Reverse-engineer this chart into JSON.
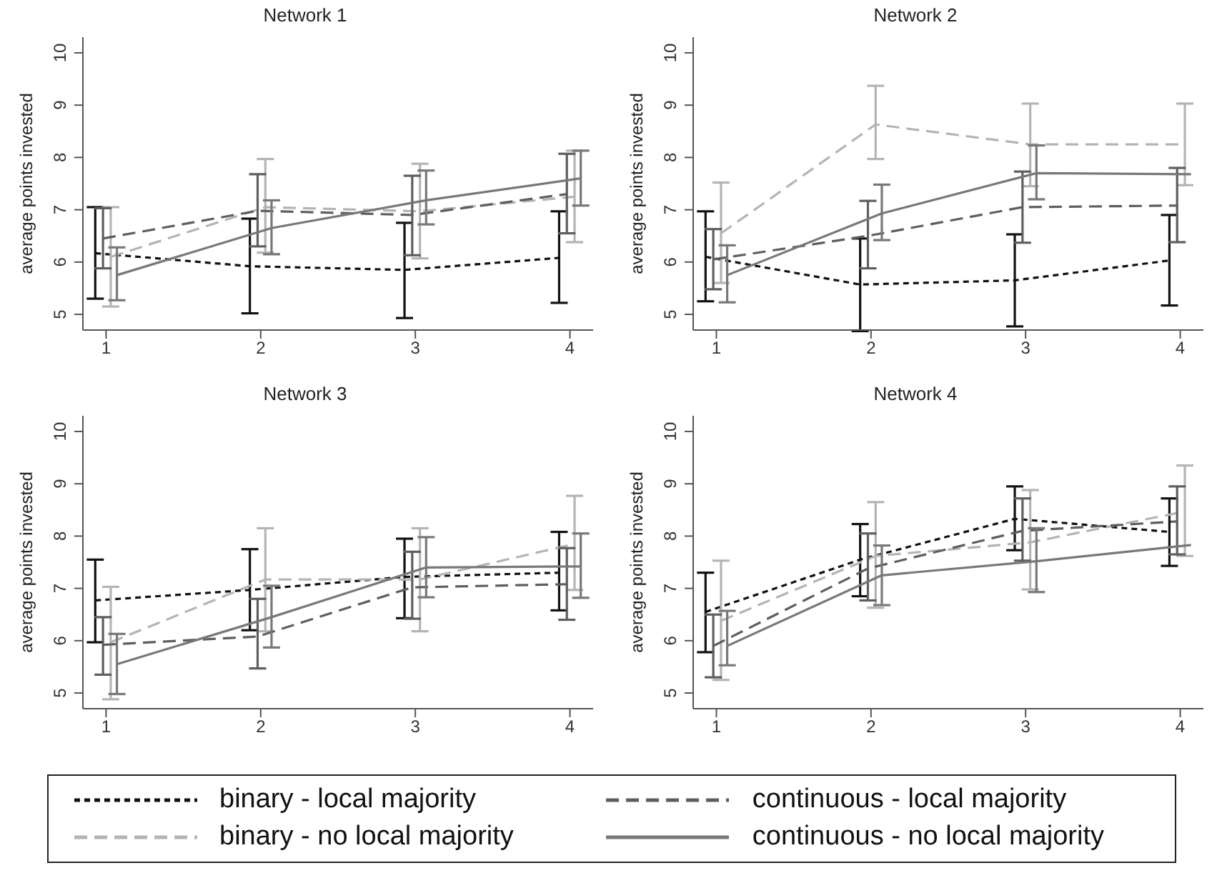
{
  "chart_data": [
    {
      "type": "line",
      "title": "Network 1",
      "ylabel": "average points invested",
      "xlim": [
        0.85,
        4.15
      ],
      "xticks": [
        1,
        2,
        3,
        4
      ],
      "ylim": [
        4.7,
        10.3
      ],
      "yticks": [
        5,
        6,
        7,
        8,
        9,
        10
      ],
      "legend": "bottom",
      "series": [
        {
          "name": "binary - local majority",
          "color": "#111111",
          "line_style": "dotted",
          "x": [
            0.93,
            1.93,
            2.93,
            3.93
          ],
          "values": [
            6.17,
            5.92,
            5.85,
            6.08
          ],
          "errors": [
            [
              5.3,
              7.05
            ],
            [
              5.02,
              6.83
            ],
            [
              4.93,
              6.75
            ],
            [
              5.22,
              6.97
            ]
          ]
        },
        {
          "name": "binary - no local majority",
          "color": "#b4b4b4",
          "line_style": "dashed",
          "x": [
            1.03,
            2.03,
            3.03,
            4.03
          ],
          "values": [
            6.1,
            7.05,
            6.97,
            7.25
          ],
          "errors": [
            [
              5.15,
              7.05
            ],
            [
              6.18,
              7.97
            ],
            [
              6.07,
              7.88
            ],
            [
              6.38,
              8.13
            ]
          ]
        },
        {
          "name": "continuous - local majority",
          "color": "#5e5e5e",
          "line_style": "dashed",
          "x": [
            0.98,
            1.98,
            2.98,
            3.98
          ],
          "values": [
            6.45,
            6.98,
            6.9,
            7.3
          ],
          "errors": [
            [
              5.88,
              7.03
            ],
            [
              6.3,
              7.68
            ],
            [
              6.13,
              7.65
            ],
            [
              6.55,
              8.07
            ]
          ]
        },
        {
          "name": "continuous - no local majority",
          "color": "#787878",
          "line_style": "solid",
          "x": [
            1.07,
            2.07,
            3.07,
            4.07
          ],
          "values": [
            5.75,
            6.65,
            7.18,
            7.6
          ],
          "errors": [
            [
              5.27,
              6.28
            ],
            [
              6.15,
              7.18
            ],
            [
              6.72,
              7.75
            ],
            [
              7.08,
              8.13
            ]
          ]
        }
      ]
    },
    {
      "type": "line",
      "title": "Network 2",
      "ylabel": "average points invested",
      "xlim": [
        0.85,
        4.15
      ],
      "xticks": [
        1,
        2,
        3,
        4
      ],
      "ylim": [
        4.7,
        10.3
      ],
      "yticks": [
        5,
        6,
        7,
        8,
        9,
        10
      ],
      "series": [
        {
          "color": "#111111",
          "line_style": "dotted",
          "x": [
            0.93,
            1.93,
            2.93,
            3.93
          ],
          "values": [
            6.1,
            5.57,
            5.65,
            6.03
          ],
          "errors": [
            [
              5.25,
              6.97
            ],
            [
              4.68,
              6.45
            ],
            [
              4.77,
              6.53
            ],
            [
              5.17,
              6.9
            ]
          ]
        },
        {
          "color": "#b4b4b4",
          "line_style": "dashed",
          "x": [
            1.03,
            2.03,
            3.03,
            4.03
          ],
          "values": [
            6.55,
            8.63,
            8.25,
            8.25
          ],
          "errors": [
            [
              5.6,
              7.52
            ],
            [
              7.97,
              9.37
            ],
            [
              7.45,
              9.03
            ],
            [
              7.47,
              9.03
            ]
          ]
        },
        {
          "color": "#5e5e5e",
          "line_style": "dashed",
          "x": [
            0.98,
            1.98,
            2.98,
            3.98
          ],
          "values": [
            6.05,
            6.5,
            7.05,
            7.08
          ],
          "errors": [
            [
              5.48,
              6.63
            ],
            [
              5.88,
              7.17
            ],
            [
              6.37,
              7.73
            ],
            [
              6.38,
              7.8
            ]
          ]
        },
        {
          "color": "#787878",
          "line_style": "solid",
          "x": [
            1.07,
            2.07,
            3.07,
            4.07
          ],
          "values": [
            5.75,
            6.93,
            7.7,
            7.68
          ],
          "errors": [
            [
              5.23,
              6.32
            ],
            [
              6.42,
              7.48
            ],
            [
              7.2,
              8.23
            ],
            null
          ]
        }
      ]
    },
    {
      "type": "line",
      "title": "Network 3",
      "ylabel": "average points invested",
      "xlim": [
        0.85,
        4.15
      ],
      "xticks": [
        1,
        2,
        3,
        4
      ],
      "ylim": [
        4.7,
        10.3
      ],
      "yticks": [
        5,
        6,
        7,
        8,
        9,
        10
      ],
      "series": [
        {
          "color": "#111111",
          "line_style": "dotted",
          "x": [
            0.93,
            1.93,
            2.93,
            3.93
          ],
          "values": [
            6.77,
            6.97,
            7.22,
            7.3
          ],
          "errors": [
            [
              5.97,
              7.55
            ],
            [
              6.2,
              7.75
            ],
            [
              6.43,
              7.95
            ],
            [
              6.58,
              8.08
            ]
          ]
        },
        {
          "color": "#b4b4b4",
          "line_style": "dashed",
          "x": [
            1.03,
            2.03,
            3.03,
            4.03
          ],
          "values": [
            5.97,
            7.17,
            7.17,
            7.85
          ],
          "errors": [
            [
              4.88,
              7.03
            ],
            [
              6.18,
              8.15
            ],
            [
              6.18,
              8.15
            ],
            [
              6.97,
              8.77
            ]
          ]
        },
        {
          "color": "#5e5e5e",
          "line_style": "dashed",
          "x": [
            0.98,
            1.98,
            2.98,
            3.98
          ],
          "values": [
            5.92,
            6.08,
            7.02,
            7.08
          ],
          "errors": [
            [
              5.35,
              6.45
            ],
            [
              5.47,
              6.8
            ],
            [
              6.42,
              7.7
            ],
            [
              6.4,
              7.77
            ]
          ]
        },
        {
          "color": "#787878",
          "line_style": "solid",
          "x": [
            1.07,
            2.07,
            3.07,
            4.07
          ],
          "values": [
            5.55,
            6.45,
            7.4,
            7.42
          ],
          "errors": [
            [
              4.98,
              6.13
            ],
            [
              5.87,
              7.05
            ],
            [
              6.83,
              7.98
            ],
            [
              6.82,
              8.05
            ]
          ]
        }
      ]
    },
    {
      "type": "line",
      "title": "Network 4",
      "ylabel": "average points invested",
      "xlim": [
        0.85,
        4.15
      ],
      "xticks": [
        1,
        2,
        3,
        4
      ],
      "ylim": [
        4.7,
        10.3
      ],
      "yticks": [
        5,
        6,
        7,
        8,
        9,
        10
      ],
      "series": [
        {
          "color": "#111111",
          "line_style": "dotted",
          "x": [
            0.93,
            1.93,
            2.93,
            3.93
          ],
          "values": [
            6.55,
            7.55,
            8.33,
            8.08
          ],
          "errors": [
            [
              5.78,
              7.3
            ],
            [
              6.85,
              8.23
            ],
            [
              7.73,
              8.95
            ],
            [
              7.43,
              8.72
            ]
          ]
        },
        {
          "color": "#b4b4b4",
          "line_style": "dashed",
          "x": [
            1.03,
            2.03,
            3.03,
            4.03
          ],
          "values": [
            6.38,
            7.62,
            7.88,
            8.47
          ],
          "errors": [
            [
              5.25,
              7.53
            ],
            [
              6.63,
              8.65
            ],
            [
              6.98,
              8.88
            ],
            [
              7.62,
              9.35
            ]
          ]
        },
        {
          "color": "#5e5e5e",
          "line_style": "dashed",
          "x": [
            0.98,
            1.98,
            2.98,
            3.98
          ],
          "values": [
            5.9,
            7.38,
            8.1,
            8.28
          ],
          "errors": [
            [
              5.3,
              6.5
            ],
            [
              6.77,
              8.05
            ],
            [
              7.53,
              8.72
            ],
            [
              7.65,
              8.95
            ]
          ]
        },
        {
          "color": "#787878",
          "line_style": "solid",
          "x": [
            1.07,
            2.07,
            3.07,
            4.07
          ],
          "values": [
            5.9,
            7.25,
            7.52,
            7.83
          ],
          "errors": [
            [
              5.53,
              6.57
            ],
            [
              6.68,
              7.82
            ],
            [
              6.93,
              8.15
            ],
            null
          ]
        }
      ]
    }
  ]
}
